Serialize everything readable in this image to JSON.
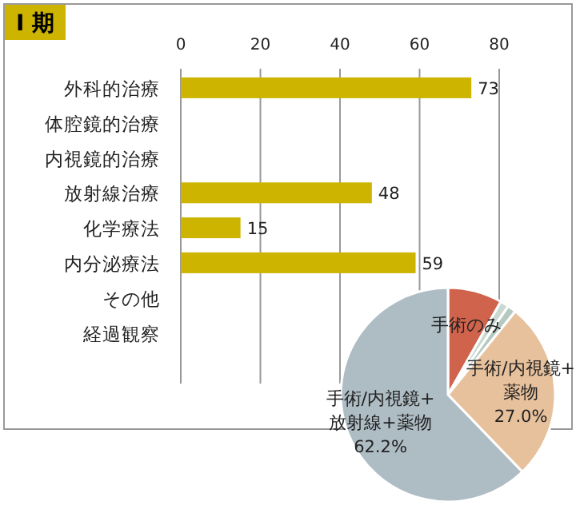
{
  "chart_data": [
    {
      "type": "bar",
      "orientation": "horizontal",
      "title": "Ⅰ 期",
      "categories": [
        "外科的治療",
        "体腔鏡的治療",
        "内視鏡的治療",
        "放射線治療",
        "化学療法",
        "内分泌療法",
        "その他",
        "経過観察"
      ],
      "values": [
        73,
        null,
        null,
        48,
        15,
        59,
        null,
        null
      ],
      "color": "#ccb400",
      "xlim": [
        0,
        80
      ],
      "xticks": [
        0,
        20,
        40,
        60,
        80
      ],
      "grid": "x",
      "data_labels": true
    },
    {
      "type": "pie",
      "categories": [
        "手術のみ",
        null,
        null,
        "手術/内視鏡+薬物",
        "手術/内視鏡+放射線+薬物"
      ],
      "values": [
        8.2,
        1.3,
        1.3,
        27.0,
        62.2
      ],
      "colors": [
        "#d0634b",
        "#c9d9d1",
        "#b5c9c0",
        "#e7c19c",
        "#aebcc4"
      ],
      "value_labels": [
        null,
        null,
        null,
        "27.0%",
        "62.2%"
      ]
    }
  ]
}
